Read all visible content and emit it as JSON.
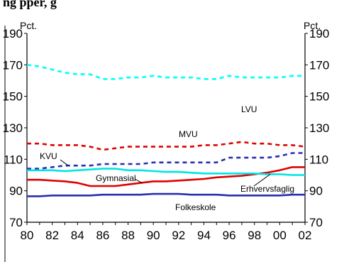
{
  "header": {
    "text": "ng pper, g"
  },
  "chart_data": {
    "type": "line",
    "unit_left": "Pct.",
    "unit_right": "Pct.",
    "ylim": [
      70,
      190
    ],
    "yticks": [
      70,
      90,
      110,
      130,
      150,
      170,
      190
    ],
    "ytick_labels": [
      "70",
      "90",
      "110",
      "130",
      "150",
      "170",
      "190"
    ],
    "x": [
      1980,
      1981,
      1982,
      1983,
      1984,
      1985,
      1986,
      1987,
      1988,
      1989,
      1990,
      1991,
      1992,
      1993,
      1994,
      1995,
      1996,
      1997,
      1998,
      1999,
      2000,
      2001,
      2002
    ],
    "xtick_labels": [
      "80",
      "82",
      "84",
      "86",
      "88",
      "90",
      "92",
      "94",
      "96",
      "98",
      "00",
      "02"
    ],
    "grid": false,
    "series": [
      {
        "name": "LVU",
        "color": "#00ffff",
        "dash": true,
        "values": [
          170,
          169,
          167,
          165,
          164,
          164,
          161,
          161,
          162,
          162,
          163,
          162,
          162,
          162,
          161,
          161,
          163,
          162,
          162,
          162,
          162,
          163,
          163
        ]
      },
      {
        "name": "MVU",
        "color": "#e00000",
        "dash": true,
        "values": [
          120,
          120,
          119,
          119,
          119,
          118,
          116,
          117,
          118,
          118,
          118,
          118,
          118,
          118,
          119,
          119,
          120,
          121,
          120,
          120,
          119,
          119,
          118
        ]
      },
      {
        "name": "KVU",
        "color": "#2a2fb0",
        "dash": true,
        "values": [
          104,
          104,
          105,
          106,
          106,
          106,
          107,
          107,
          107,
          107,
          108,
          108,
          108,
          108,
          108,
          108,
          111,
          111,
          111,
          111,
          112,
          114,
          114
        ]
      },
      {
        "name": "Gymnasial",
        "color": "#e00000",
        "dash": false,
        "values": [
          97,
          97,
          96.5,
          96,
          95,
          93,
          93,
          93,
          94,
          95,
          96,
          96,
          96.5,
          97,
          97.5,
          98.5,
          99,
          99.5,
          100.5,
          101.5,
          103,
          105,
          105
        ]
      },
      {
        "name": "Erhvervsfaglig",
        "color": "#00e5e5",
        "dash": false,
        "values": [
          103,
          103,
          103,
          102.5,
          103,
          103.5,
          104,
          104,
          103,
          103,
          102.5,
          102,
          102,
          101.5,
          101,
          101,
          101,
          101,
          101,
          100.5,
          100.5,
          100,
          100
        ]
      },
      {
        "name": "Folkeskole",
        "color": "#2a2fb0",
        "dash": false,
        "values": [
          86.5,
          86.5,
          87,
          87,
          87,
          87,
          87.5,
          87.5,
          87.5,
          87.5,
          88,
          88,
          88,
          87.5,
          87.5,
          87.5,
          87,
          87,
          87,
          87,
          87,
          87.5,
          87.5
        ]
      }
    ],
    "labels": [
      {
        "text": "LVU"
      },
      {
        "text": "MVU"
      },
      {
        "text": "KVU"
      },
      {
        "text": "Gymnasial"
      },
      {
        "text": "Erhvervsfaglig"
      },
      {
        "text": "Folkeskole"
      }
    ]
  }
}
